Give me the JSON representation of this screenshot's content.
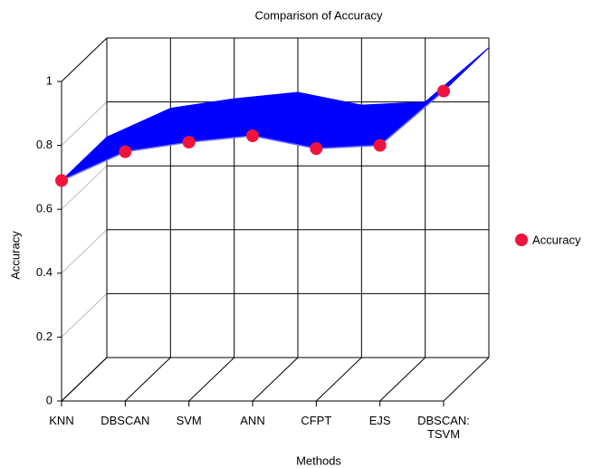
{
  "chart_data": {
    "type": "line3d",
    "title": "Comparison of Accuracy",
    "xlabel": "Methods",
    "ylabel": "Accuracy",
    "categories": [
      "KNN",
      "DBSCAN",
      "SVM",
      "ANN",
      "CFPT",
      "EJS",
      "DBSCAN:\nTSVM"
    ],
    "series": [
      {
        "name": "Accuracy",
        "color": "#0000ff",
        "marker_color": "#f0143c",
        "values": [
          0.69,
          0.78,
          0.81,
          0.83,
          0.79,
          0.8,
          0.97
        ]
      }
    ],
    "ylim": [
      0,
      1
    ],
    "yticks": [
      0,
      0.2,
      0.4,
      0.6,
      0.8,
      1
    ],
    "grid": true,
    "legend": "right"
  }
}
